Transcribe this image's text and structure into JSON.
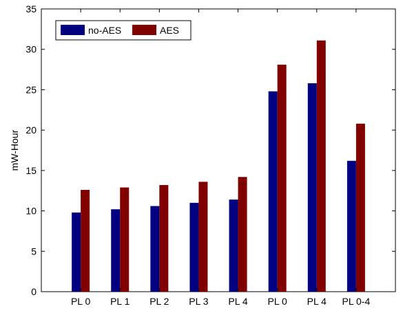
{
  "chart_data": {
    "type": "bar",
    "title": "",
    "xlabel": "",
    "ylabel": "mW-Hour",
    "ylim": [
      0,
      35
    ],
    "yticks": [
      0,
      5,
      10,
      15,
      20,
      25,
      30,
      35
    ],
    "categories": [
      "PL 0",
      "PL 1",
      "PL 2",
      "PL 3",
      "PL 4",
      "PL 0",
      "PL 4",
      "PL 0-4"
    ],
    "series": [
      {
        "name": "no-AES",
        "color": "#000080",
        "values": [
          9.8,
          10.2,
          10.6,
          11.0,
          11.4,
          24.8,
          25.8,
          16.2
        ]
      },
      {
        "name": "AES",
        "color": "#800000",
        "values": [
          12.6,
          12.9,
          13.2,
          13.6,
          14.2,
          28.1,
          31.1,
          20.8
        ]
      }
    ],
    "legend": {
      "position": "top-left"
    },
    "grid": false
  }
}
